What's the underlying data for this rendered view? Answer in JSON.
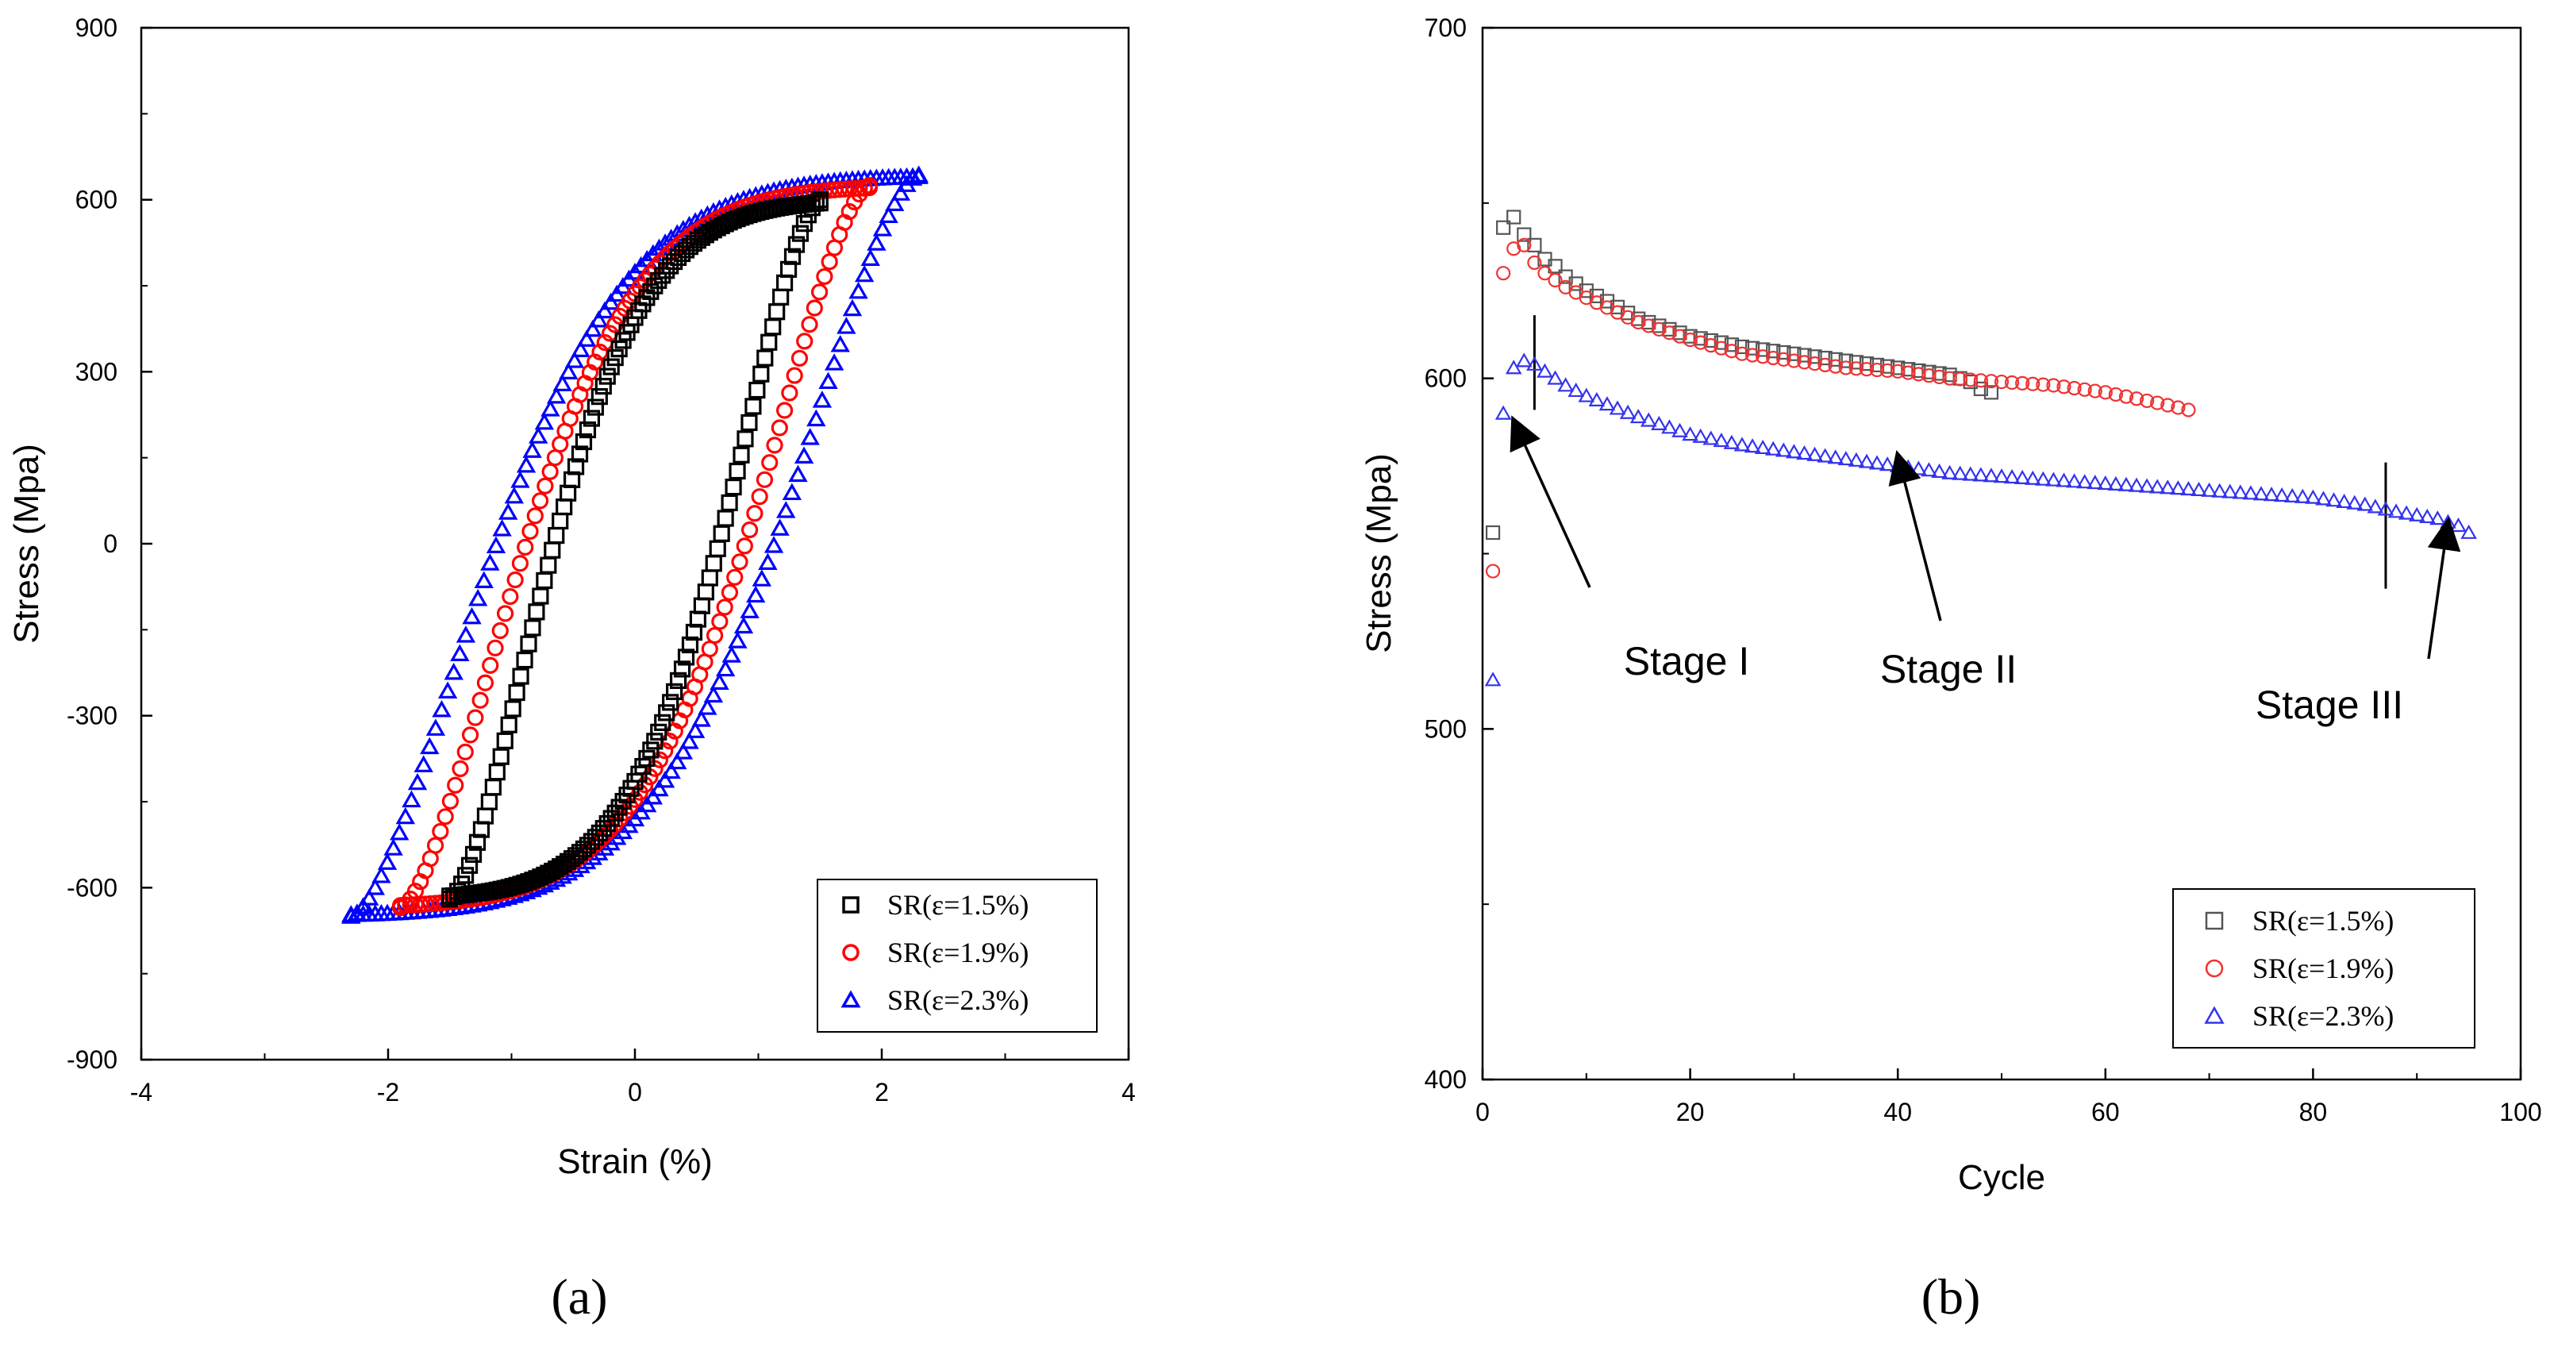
{
  "chart_data": [
    {
      "type": "scatter",
      "panel": "a",
      "caption": "(a)",
      "xlabel": "Strain (%)",
      "ylabel": "Stress (Mpa)",
      "xlim": [
        -4,
        4
      ],
      "ylim": [
        -900,
        900
      ],
      "xticks": [
        -4,
        -2,
        0,
        2,
        4
      ],
      "yticks": [
        -900,
        -600,
        -300,
        0,
        300,
        600,
        900
      ],
      "xtick_labels": [
        "-4",
        "-2",
        "0",
        "2",
        "4"
      ],
      "ytick_labels": [
        "-900",
        "-600",
        "-300",
        "0",
        "300",
        "600",
        "900"
      ],
      "legend_position": "bottom-right",
      "series": [
        {
          "name": "SR(ε=1.5%)",
          "marker": "square",
          "color": "#000000",
          "strain_amplitude": 1.5,
          "peak_stress": 600,
          "min_stress": -620,
          "knee_strain": 0.7,
          "knee_stress": 540
        },
        {
          "name": "SR(ε=1.9%)",
          "marker": "circle",
          "color": "#ff0000",
          "strain_amplitude": 1.9,
          "peak_stress": 625,
          "min_stress": -635,
          "knee_strain": 1.0,
          "knee_stress": 560
        },
        {
          "name": "SR(ε=2.3%)",
          "marker": "triangle",
          "color": "#0000ff",
          "strain_amplitude": 2.3,
          "peak_stress": 643,
          "min_stress": -650,
          "knee_strain": 1.35,
          "knee_stress": 570
        }
      ]
    },
    {
      "type": "scatter",
      "panel": "b",
      "caption": "(b)",
      "xlabel": "Cycle",
      "ylabel": "Stress (Mpa)",
      "xlim": [
        0,
        100
      ],
      "ylim": [
        400,
        700
      ],
      "xticks": [
        0,
        20,
        40,
        60,
        80,
        100
      ],
      "yticks": [
        400,
        500,
        600,
        700
      ],
      "xtick_labels": [
        "0",
        "20",
        "40",
        "60",
        "80",
        "100"
      ],
      "ytick_labels": [
        "400",
        "500",
        "600",
        "700"
      ],
      "legend_position": "bottom-right",
      "annotations": [
        {
          "text": "Stage I",
          "data_x": 3,
          "data_y": 588
        },
        {
          "text": "Stage II",
          "data_x": 40,
          "data_y": 578
        },
        {
          "text": "Stage III",
          "data_x": 93,
          "data_y": 559
        }
      ],
      "stage_divider_cycles": [
        5,
        87
      ],
      "series": [
        {
          "name": "SR(ε=1.5%)",
          "marker": "square-open",
          "color": "#555555",
          "x": [
            1,
            2,
            3,
            4,
            5,
            6,
            7,
            8,
            10,
            12,
            15,
            20,
            25,
            30,
            35,
            40,
            45,
            47,
            48,
            49
          ],
          "y": [
            556,
            643,
            646,
            641,
            638,
            634,
            632,
            629,
            625,
            622,
            617,
            612,
            609,
            607,
            605,
            603,
            601,
            599,
            597,
            596
          ]
        },
        {
          "name": "SR(ε=1.9%)",
          "marker": "circle-open",
          "color": "#ee3333",
          "x": [
            1,
            2,
            3,
            4,
            5,
            6,
            8,
            10,
            15,
            20,
            25,
            30,
            35,
            40,
            45,
            50,
            55,
            60,
            65,
            68
          ],
          "y": [
            545,
            630,
            637,
            638,
            633,
            630,
            626,
            623,
            616,
            611,
            607,
            605,
            603,
            602,
            600,
            599,
            598,
            596,
            593,
            591
          ]
        },
        {
          "name": "SR(ε=2.3%)",
          "marker": "triangle-open",
          "color": "#3333ee",
          "x": [
            1,
            2,
            3,
            4,
            5,
            6,
            8,
            10,
            15,
            20,
            25,
            30,
            35,
            40,
            45,
            50,
            55,
            60,
            65,
            70,
            75,
            80,
            85,
            88,
            90,
            92,
            94,
            95
          ],
          "y": [
            514,
            590,
            603,
            605,
            604,
            602,
            598,
            595,
            589,
            584,
            581,
            579,
            577,
            575,
            573,
            572,
            571,
            570,
            569,
            568,
            567,
            566,
            564,
            562,
            561,
            560,
            558,
            556
          ]
        }
      ]
    }
  ]
}
